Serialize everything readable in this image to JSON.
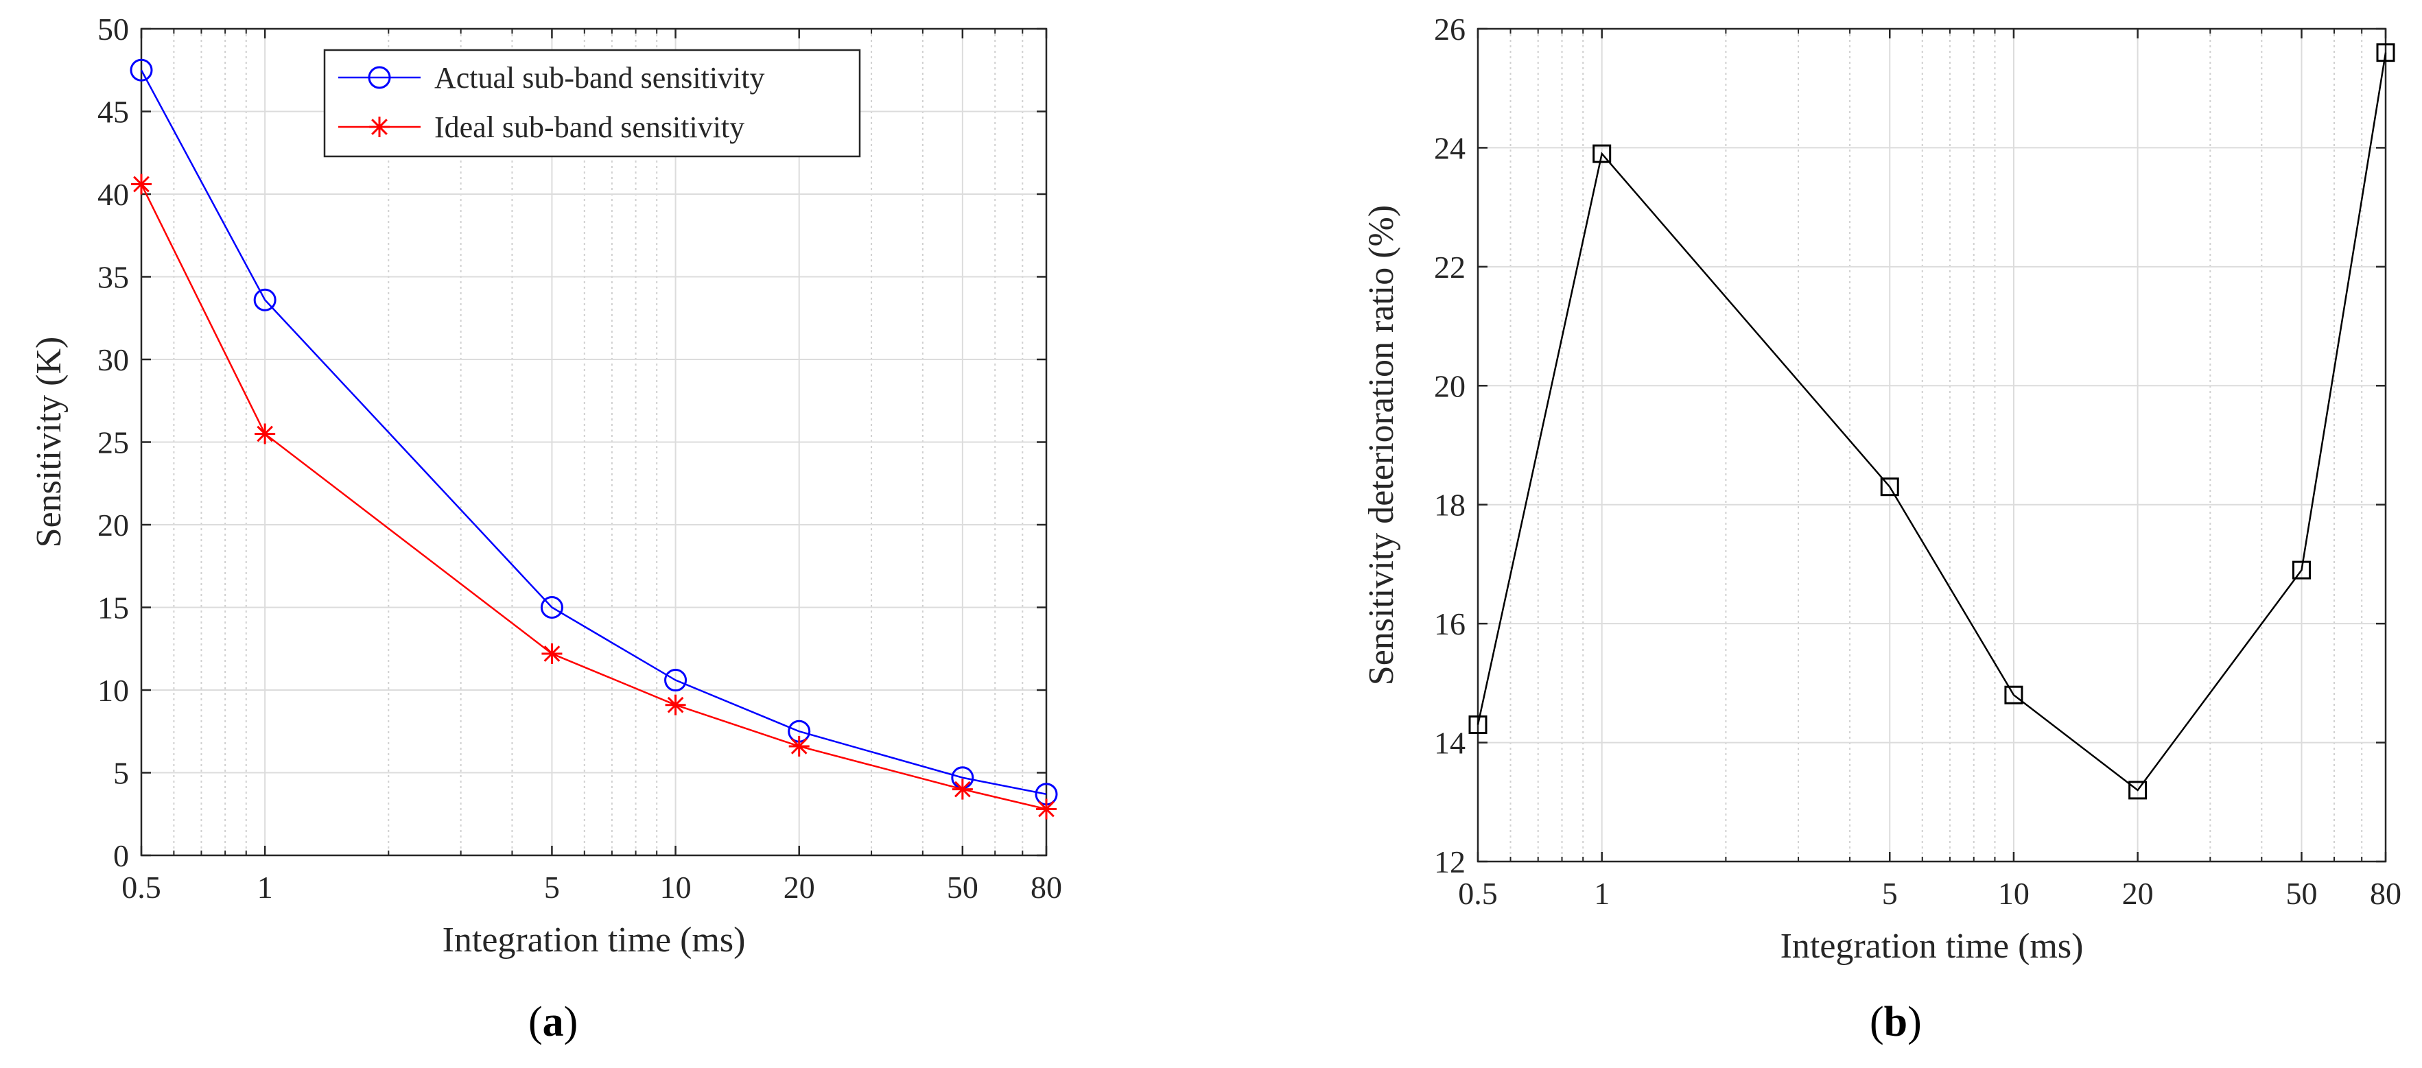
{
  "chart_data": [
    {
      "type": "line",
      "panel": "a",
      "xscale": "log",
      "xlabel": "Integration time (ms)",
      "ylabel": "Sensitivity (K)",
      "xlim": [
        0.5,
        80
      ],
      "ylim": [
        0,
        50
      ],
      "xticks": [
        0.5,
        1,
        5,
        10,
        20,
        50,
        80
      ],
      "xtick_labels": [
        "0.5",
        "1",
        "5",
        "10",
        "20",
        "50",
        "80"
      ],
      "yticks": [
        0,
        5,
        10,
        15,
        20,
        25,
        30,
        35,
        40,
        45,
        50
      ],
      "ytick_labels": [
        "0",
        "5",
        "10",
        "15",
        "20",
        "25",
        "30",
        "35",
        "40",
        "45",
        "50"
      ],
      "grid": true,
      "legend_position": "top-center",
      "x": [
        0.5,
        1,
        5,
        10,
        20,
        50,
        80
      ],
      "series": [
        {
          "name": "Actual sub-band sensitivity",
          "color": "#0000ff",
          "marker": "circle",
          "values": [
            47.5,
            33.6,
            15.0,
            10.6,
            7.5,
            4.7,
            3.7
          ]
        },
        {
          "name": "Ideal sub-band sensitivity",
          "color": "#ff0000",
          "marker": "asterisk",
          "values": [
            40.6,
            25.5,
            12.2,
            9.1,
            6.6,
            4.0,
            2.8
          ]
        }
      ]
    },
    {
      "type": "line",
      "panel": "b",
      "xscale": "log",
      "xlabel": "Integration time (ms)",
      "ylabel": "Sensitivity deterioration ratio (%)",
      "xlim": [
        0.5,
        80
      ],
      "ylim": [
        12,
        26
      ],
      "xticks": [
        0.5,
        1,
        5,
        10,
        20,
        50,
        80
      ],
      "xtick_labels": [
        "0.5",
        "1",
        "5",
        "10",
        "20",
        "50",
        "80"
      ],
      "yticks": [
        12,
        14,
        16,
        18,
        20,
        22,
        24,
        26
      ],
      "ytick_labels": [
        "12",
        "14",
        "16",
        "18",
        "20",
        "22",
        "24",
        "26"
      ],
      "grid": true,
      "x": [
        0.5,
        1,
        5,
        10,
        20,
        50,
        80
      ],
      "series": [
        {
          "name": "Sensitivity deterioration ratio",
          "color": "#000000",
          "marker": "square",
          "values": [
            14.3,
            23.9,
            18.3,
            14.8,
            13.2,
            16.9,
            25.6
          ]
        }
      ]
    }
  ],
  "panel_labels": {
    "a": "a",
    "b": "b"
  }
}
